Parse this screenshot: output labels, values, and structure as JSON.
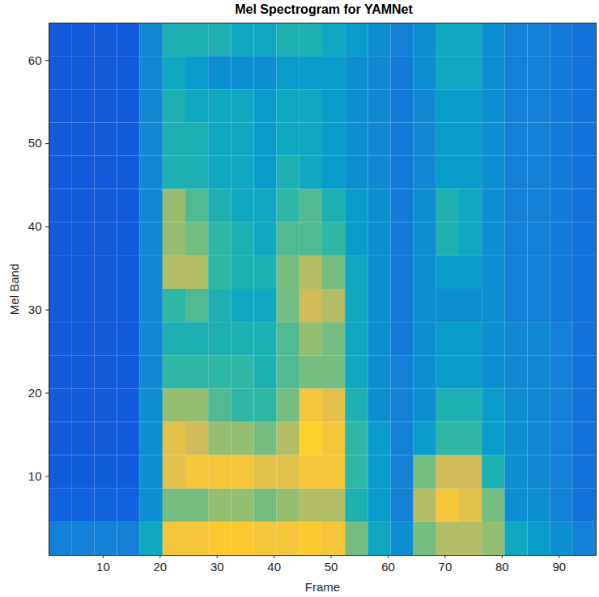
{
  "chart_data": {
    "type": "heatmap",
    "title": "Mel Spectrogram for YAMNet",
    "x_label": "Frame",
    "y_label": "Mel Band",
    "xlim": [
      0.5,
      96.5
    ],
    "ylim": [
      0.5,
      64.5
    ],
    "xticks": [
      10,
      20,
      30,
      40,
      50,
      60,
      70,
      80,
      90
    ],
    "yticks": [
      10,
      20,
      30,
      40,
      50,
      60
    ],
    "x_edges": [
      0.5,
      4.5,
      8.5,
      12.5,
      16.5,
      20.5,
      24.5,
      28.5,
      32.5,
      36.5,
      40.5,
      44.5,
      48.5,
      52.5,
      56.5,
      60.5,
      64.5,
      68.5,
      72.5,
      76.5,
      80.5,
      84.5,
      88.5,
      92.5,
      96.5
    ],
    "y_edges": [
      0.5,
      4.5,
      8.5,
      12.5,
      16.5,
      20.5,
      24.5,
      28.5,
      32.5,
      36.5,
      40.5,
      44.5,
      48.5,
      52.5,
      56.5,
      60.5,
      64.5
    ],
    "color_range": [
      0,
      10
    ],
    "cells": [
      [
        2.5,
        2.5,
        2.5,
        2.5,
        4,
        8.5,
        8.5,
        8.8,
        8.8,
        8.5,
        8.5,
        8.8,
        8.5,
        6,
        4,
        3,
        6,
        7,
        7,
        6.5,
        4,
        3.5,
        3,
        2.5
      ],
      [
        1.5,
        1.5,
        1.5,
        1.5,
        3,
        6,
        6,
        6.5,
        6.5,
        6,
        6.5,
        7,
        7,
        4.5,
        3.5,
        2.5,
        7,
        8.5,
        8,
        6,
        3,
        3,
        2.5,
        2
      ],
      [
        1.3,
        1.3,
        1.3,
        1.3,
        3,
        8,
        8.5,
        8.5,
        8.5,
        8,
        8,
        8.5,
        8.5,
        5,
        3.5,
        2.5,
        6,
        7.5,
        7.5,
        4.5,
        3,
        2.8,
        2.5,
        2
      ],
      [
        1.2,
        1.2,
        1.2,
        1.2,
        3,
        8,
        7.5,
        6.5,
        6.5,
        6,
        7,
        9,
        8.5,
        5,
        3.5,
        2.5,
        3.5,
        5,
        5,
        3.5,
        3,
        2.8,
        2.5,
        2
      ],
      [
        1.2,
        1.2,
        1.2,
        1.2,
        3,
        6.5,
        6.5,
        5.5,
        5,
        5,
        6,
        8.5,
        8,
        4.5,
        3,
        2.5,
        3,
        4.5,
        4.5,
        3.5,
        3,
        2.8,
        2.5,
        2
      ],
      [
        1.2,
        1.2,
        1.2,
        1.2,
        2.8,
        5,
        5,
        5,
        5,
        4.5,
        5.5,
        6,
        6,
        4,
        3,
        2.5,
        3,
        3.5,
        3.5,
        3,
        2.8,
        2.8,
        2.5,
        2
      ],
      [
        1.2,
        1.2,
        1.2,
        1.2,
        2.8,
        4.5,
        4.5,
        4.5,
        4.5,
        4.5,
        5.5,
        6.5,
        6,
        4,
        3,
        2.3,
        3,
        3.5,
        3.5,
        3,
        2.8,
        2.8,
        2.5,
        2
      ],
      [
        1.2,
        1.2,
        1.2,
        1.2,
        2.8,
        5,
        5.5,
        4.5,
        4,
        4,
        6,
        7.5,
        7,
        4,
        3,
        2.3,
        3,
        3,
        3,
        3,
        2.5,
        2.5,
        2.3,
        2
      ],
      [
        1.2,
        1.2,
        1.2,
        1.2,
        2.8,
        7,
        7,
        5,
        4.5,
        4.5,
        6,
        7,
        6,
        4,
        3,
        2.3,
        3,
        3.5,
        3.5,
        3,
        2.5,
        2.5,
        2.3,
        2
      ],
      [
        1.2,
        1.2,
        1.2,
        1.2,
        2.8,
        6.5,
        6,
        5,
        4.5,
        4,
        5.5,
        5.5,
        5,
        3.5,
        3,
        2.3,
        3,
        4.5,
        4,
        3,
        2.5,
        2.5,
        2.3,
        2
      ],
      [
        1.2,
        1.2,
        1.2,
        1.2,
        2.8,
        6.5,
        5.5,
        4.5,
        4,
        4,
        5,
        5.5,
        4.5,
        3.5,
        3,
        2.3,
        3,
        4.5,
        4,
        3,
        2.5,
        2.5,
        2.3,
        2
      ],
      [
        1.2,
        1.2,
        1.2,
        1.2,
        2.8,
        4.5,
        4.5,
        4,
        4,
        3.5,
        4.5,
        4,
        3.5,
        3,
        2.8,
        2.3,
        2.8,
        3.5,
        3.5,
        3,
        2.5,
        2.5,
        2.3,
        2
      ],
      [
        1.2,
        1.2,
        1.2,
        1.2,
        2.8,
        4.5,
        4.5,
        4,
        4,
        3.5,
        4,
        4,
        3.5,
        3,
        2.8,
        2.3,
        2.8,
        3.5,
        3.5,
        3,
        2.5,
        2.5,
        2.3,
        2
      ],
      [
        1.2,
        1.2,
        1.2,
        1.2,
        2.8,
        4.5,
        4,
        4,
        4,
        3.5,
        4,
        4,
        3.5,
        3,
        2.8,
        2.3,
        2.8,
        3.5,
        3.5,
        3,
        2.5,
        2.5,
        2.3,
        2
      ],
      [
        1.2,
        1.2,
        1.2,
        1.2,
        2.8,
        4,
        3.5,
        3,
        3,
        3,
        3.5,
        3.5,
        3.5,
        3,
        2.8,
        2.3,
        3,
        4,
        4,
        3,
        2.5,
        2.5,
        2.3,
        2
      ],
      [
        1.2,
        1.2,
        1.2,
        1.2,
        2.8,
        4.5,
        4.5,
        4.5,
        4,
        4,
        4.5,
        4.5,
        4,
        3.5,
        3,
        2.5,
        3,
        4,
        4,
        3,
        2.5,
        2.5,
        2.3,
        2
      ]
    ]
  }
}
